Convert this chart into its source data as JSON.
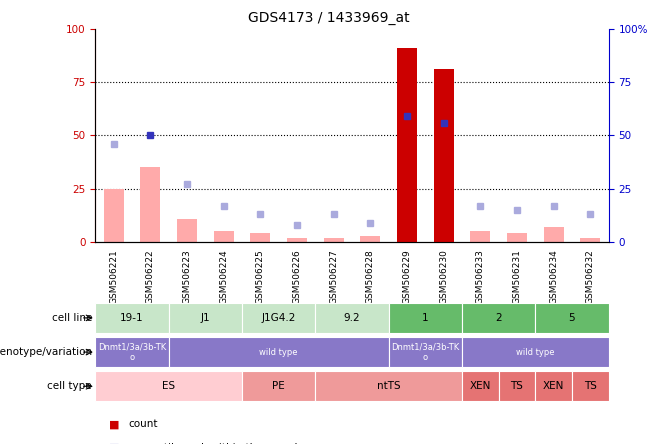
{
  "title": "GDS4173 / 1433969_at",
  "samples": [
    "GSM506221",
    "GSM506222",
    "GSM506223",
    "GSM506224",
    "GSM506225",
    "GSM506226",
    "GSM506227",
    "GSM506228",
    "GSM506229",
    "GSM506230",
    "GSM506233",
    "GSM506231",
    "GSM506234",
    "GSM506232"
  ],
  "count_values": [
    0,
    0,
    0,
    0,
    0,
    0,
    0,
    0,
    91,
    81,
    0,
    0,
    0,
    0
  ],
  "percentile_rank": [
    null,
    50,
    null,
    null,
    null,
    null,
    null,
    null,
    59,
    56,
    null,
    null,
    null,
    null
  ],
  "absent_value": [
    25,
    35,
    11,
    5,
    4,
    2,
    2,
    3,
    null,
    null,
    5,
    4,
    7,
    2
  ],
  "absent_rank": [
    46,
    null,
    27,
    17,
    13,
    8,
    13,
    9,
    null,
    null,
    17,
    15,
    17,
    13
  ],
  "cl_spans": [
    [
      0,
      1,
      "19-1",
      "#c8e6c9"
    ],
    [
      2,
      3,
      "J1",
      "#c8e6c9"
    ],
    [
      4,
      5,
      "J1G4.2",
      "#c8e6c9"
    ],
    [
      6,
      7,
      "9.2",
      "#c8e6c9"
    ],
    [
      8,
      9,
      "1",
      "#66bb6a"
    ],
    [
      10,
      11,
      "2",
      "#66bb6a"
    ],
    [
      12,
      13,
      "5",
      "#66bb6a"
    ]
  ],
  "gt_spans": [
    [
      0,
      1,
      "Dnmt1/3a/3b-TK\no",
      "#8878c8"
    ],
    [
      2,
      7,
      "wild type",
      "#8878c8"
    ],
    [
      8,
      9,
      "Dnmt1/3a/3b-TK\no",
      "#8878c8"
    ],
    [
      10,
      13,
      "wild type",
      "#8878c8"
    ]
  ],
  "ct_spans": [
    [
      0,
      3,
      "ES",
      "#ffcdd2"
    ],
    [
      4,
      5,
      "PE",
      "#ef9a9a"
    ],
    [
      6,
      9,
      "ntTS",
      "#ef9a9a"
    ],
    [
      10,
      10,
      "XEN",
      "#e57373"
    ],
    [
      11,
      11,
      "TS",
      "#e57373"
    ],
    [
      12,
      12,
      "XEN",
      "#e57373"
    ],
    [
      13,
      13,
      "TS",
      "#e57373"
    ]
  ],
  "bar_color_count": "#cc0000",
  "bar_color_absent_value": "#ffaaaa",
  "dot_color_rank": "#3333bb",
  "dot_color_absent_rank": "#aaaadd",
  "yticks": [
    0,
    25,
    50,
    75,
    100
  ]
}
